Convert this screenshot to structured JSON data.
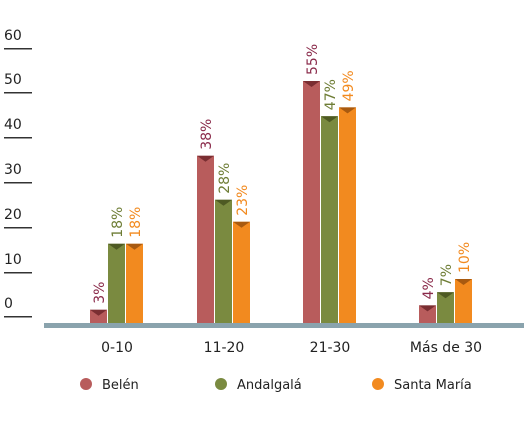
{
  "chart_data": {
    "type": "bar",
    "categories": [
      "0-10",
      "11-20",
      "21-30",
      "Más de 30"
    ],
    "series": [
      {
        "name": "Belén",
        "values": [
          3,
          38,
          55,
          4
        ],
        "labels": [
          "3%",
          "38%",
          "55%",
          "4%"
        ],
        "color": "#b85c5c",
        "cap": "#7a2e32",
        "label_color": "#8a2a4a"
      },
      {
        "name": "Andalgalá",
        "values": [
          18,
          28,
          47,
          7
        ],
        "labels": [
          "18%",
          "28%",
          "47%",
          "7%"
        ],
        "color": "#7a8a40",
        "cap": "#4e5a23",
        "label_color": "#6e7d35"
      },
      {
        "name": "Santa María",
        "values": [
          18,
          23,
          49,
          10
        ],
        "labels": [
          "18%",
          "23%",
          "49%",
          "10%"
        ],
        "color": "#f28a1f",
        "cap": "#a85a10",
        "label_color": "#f28a1f"
      }
    ],
    "yticks": [
      "0",
      "10",
      "20",
      "30",
      "40",
      "50",
      "60"
    ],
    "ylim": [
      0,
      60
    ],
    "legend_position": "bottom",
    "baseline_color": "#8aa3ad"
  }
}
